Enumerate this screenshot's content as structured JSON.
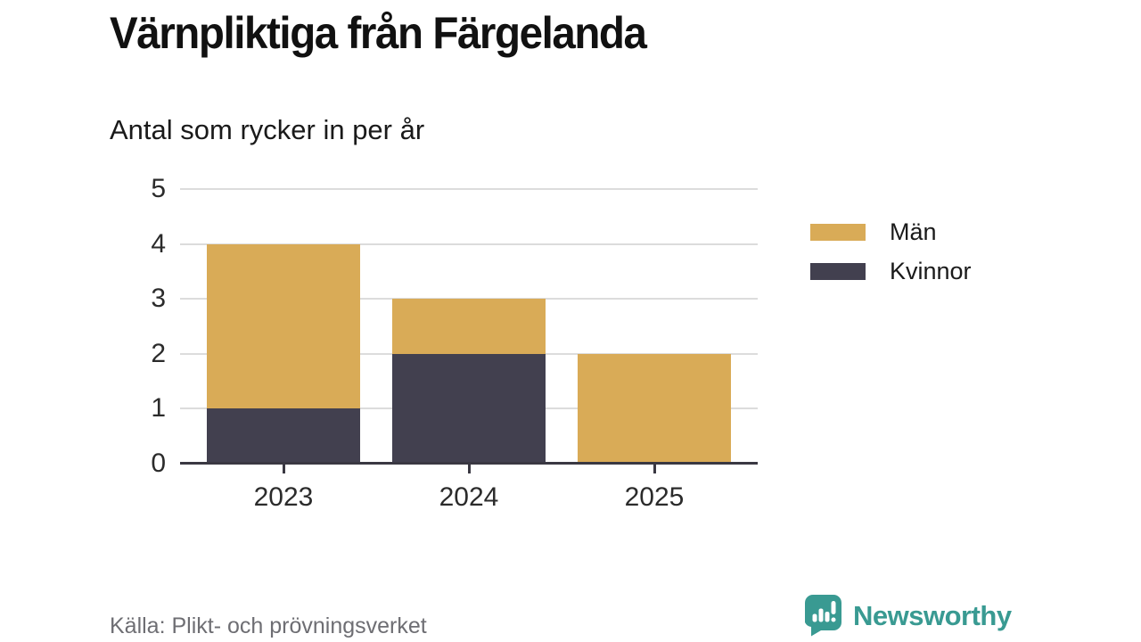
{
  "chart_data": {
    "type": "bar",
    "stacked": true,
    "title": "Värnpliktiga från Färgelanda",
    "subtitle": "Antal som rycker in per år",
    "categories": [
      "2023",
      "2024",
      "2025"
    ],
    "series": [
      {
        "name": "Män",
        "color": "#d9ab57",
        "values": [
          3,
          1,
          2
        ]
      },
      {
        "name": "Kvinnor",
        "color": "#42404f",
        "values": [
          1,
          2,
          0
        ]
      }
    ],
    "stack_order_bottom_to_top": [
      "Kvinnor",
      "Män"
    ],
    "totals": [
      4,
      3,
      2
    ],
    "ylim": [
      0,
      5
    ],
    "yticks": [
      0,
      1,
      2,
      3,
      4,
      5
    ],
    "grid": true,
    "legend_position": "right",
    "xlabel": "",
    "ylabel": ""
  },
  "footer": {
    "source": "Källa: Plikt- och prövningsverket",
    "brand": "Newsworthy"
  },
  "colors": {
    "axis": "#3a3842",
    "gridline": "#dcdcdc",
    "tick_text": "#2b2b2b",
    "muted_text": "#6e6e73",
    "brand_teal": "#399a92",
    "background": "#ffffff"
  },
  "icons": {
    "brand_icon": "newsworthy-speech-bubble-bar-chart-icon"
  }
}
